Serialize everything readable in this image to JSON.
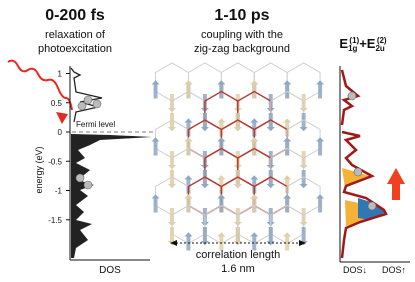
{
  "panel_left": {
    "title": "0-200 fs",
    "subtitle_lines": [
      "relaxation of",
      "photoexcitation"
    ],
    "fermi_label": "Fermi level",
    "y_axis_label": "energy (eV)",
    "y_ticks": [
      1,
      0.5,
      0,
      -0.5,
      -1,
      -1.5
    ],
    "x_axis_label": "DOS"
  },
  "panel_middle": {
    "title": "1-10 ps",
    "subtitle_lines": [
      "coupling with the",
      "zig-zag background"
    ],
    "scale_label_lines": [
      "correlation length",
      "1.6 nm"
    ]
  },
  "panel_right": {
    "title": {
      "base1": "E",
      "sub1": "1g",
      "sup1": "(1)",
      "plus": "+",
      "base2": "E",
      "sub2": "2u",
      "sup2": "(2)"
    },
    "x_labels": [
      "DOS↓",
      "DOS↑"
    ]
  }
}
